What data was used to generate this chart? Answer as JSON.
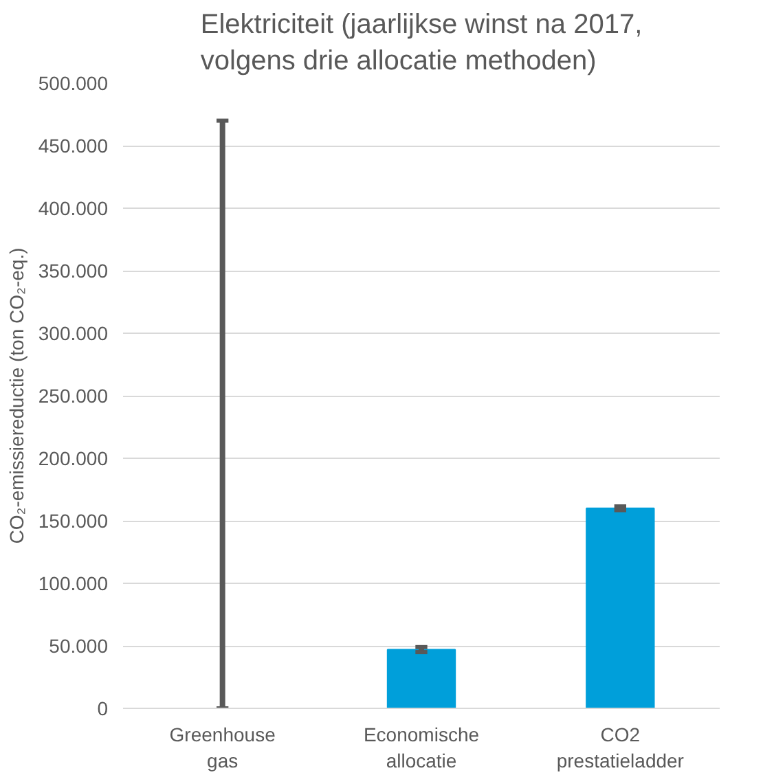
{
  "chart_data": {
    "type": "bar",
    "title": "Elektriciteit (jaarlijkse winst na 2017,\nvolgens drie allocatie methoden)",
    "ylabel": "CO₂-emissiereductie (ton CO₂-eq.)",
    "categories": [
      "Greenhouse\ngas",
      "Economische\nallocatie",
      "CO2\nprestatieladder"
    ],
    "values": [
      0,
      47000,
      160000
    ],
    "errors": [
      [
        0,
        470000
      ],
      2000,
      1500
    ],
    "color": "#009fda",
    "ylim": [
      0,
      500000
    ],
    "yticks": [
      {
        "value": 0,
        "label": "0"
      },
      {
        "value": 50000,
        "label": "50.000"
      },
      {
        "value": 100000,
        "label": "100.000"
      },
      {
        "value": 150000,
        "label": "150.000"
      },
      {
        "value": 200000,
        "label": "200.000"
      },
      {
        "value": 250000,
        "label": "250.000"
      },
      {
        "value": 300000,
        "label": "300.000"
      },
      {
        "value": 350000,
        "label": "350.000"
      },
      {
        "value": 400000,
        "label": "400.000"
      },
      {
        "value": 450000,
        "label": "450.000"
      },
      {
        "value": 500000,
        "label": "500.000"
      }
    ],
    "grid": "y"
  }
}
